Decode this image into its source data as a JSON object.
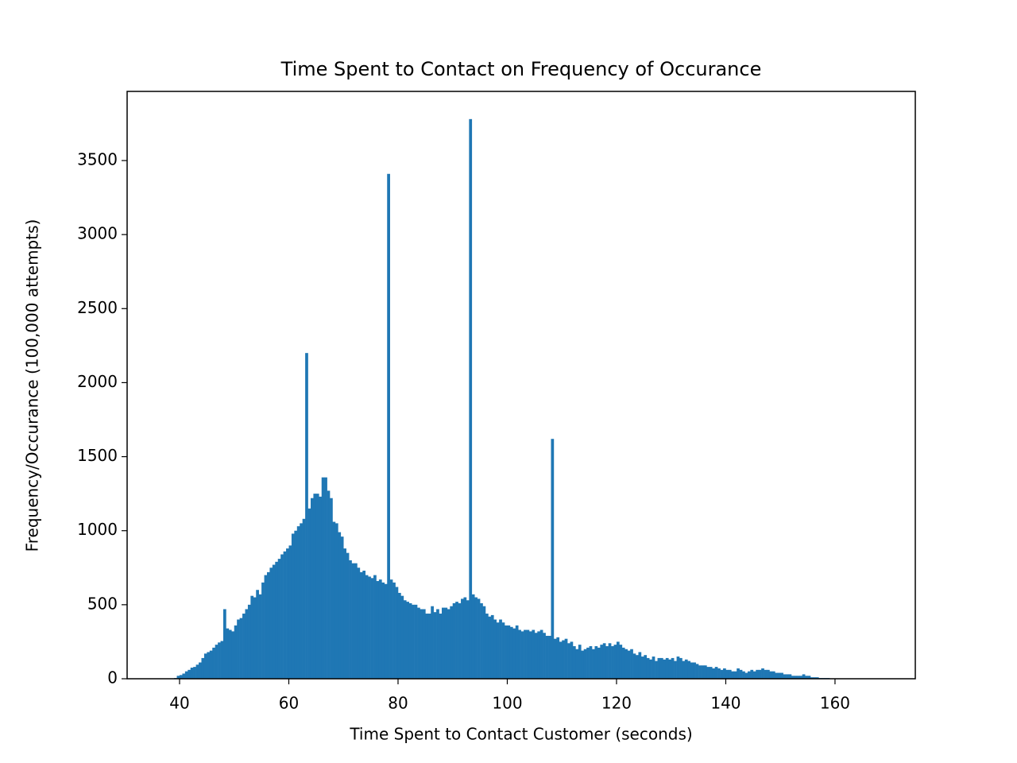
{
  "chart_data": {
    "type": "histogram",
    "title": "Time Spent to Contact on Frequency of Occurance",
    "x_label": "Time Spent to Contact Customer (seconds)",
    "y_label": "Frequency/Occurance (100,000 attempts)",
    "color": "#1f77b4",
    "bins": [
      39,
      39.5,
      40,
      40.5,
      41,
      41.5,
      42,
      42.5,
      43,
      43.5,
      44,
      44.5,
      45,
      45.5,
      46,
      46.5,
      47,
      47.5,
      48,
      48.5,
      49,
      49.5,
      50,
      50.5,
      51,
      51.5,
      52,
      52.5,
      53,
      53.5,
      54,
      54.5,
      55,
      55.5,
      56,
      56.5,
      57,
      57.5,
      58,
      58.5,
      59,
      59.5,
      60,
      60.5,
      61,
      61.5,
      62,
      62.5,
      63,
      63.5,
      64,
      64.5,
      65,
      65.5,
      66,
      66.5,
      67,
      67.5,
      68,
      68.5,
      69,
      69.5,
      70,
      70.5,
      71,
      71.5,
      72,
      72.5,
      73,
      73.5,
      74,
      74.5,
      75,
      75.5,
      76,
      76.5,
      77,
      77.5,
      78,
      78.5,
      79,
      79.5,
      80,
      80.5,
      81,
      81.5,
      82,
      82.5,
      83,
      83.5,
      84,
      84.5,
      85,
      85.5,
      86,
      86.5,
      87,
      87.5,
      88,
      88.5,
      89,
      89.5,
      90,
      90.5,
      91,
      91.5,
      92,
      92.5,
      93,
      93.5,
      94,
      94.5,
      95,
      95.5,
      96,
      96.5,
      97,
      97.5,
      98,
      98.5,
      99,
      99.5,
      100,
      100.5,
      101,
      101.5,
      102,
      102.5,
      103,
      103.5,
      104,
      104.5,
      105,
      105.5,
      106,
      106.5,
      107,
      107.5,
      108,
      108.5,
      109,
      109.5,
      110,
      110.5,
      111,
      111.5,
      112,
      112.5,
      113,
      113.5,
      114,
      114.5,
      115,
      115.5,
      116,
      116.5,
      117,
      117.5,
      118,
      118.5,
      119,
      119.5,
      120,
      120.5,
      121,
      121.5,
      122,
      122.5,
      123,
      123.5,
      124,
      124.5,
      125,
      125.5,
      126,
      126.5,
      127,
      127.5,
      128,
      128.5,
      129,
      129.5,
      130,
      130.5,
      131,
      131.5,
      132,
      132.5,
      133,
      133.5,
      134,
      134.5,
      135,
      135.5,
      136,
      136.5,
      137,
      137.5,
      138,
      138.5,
      139,
      139.5,
      140,
      140.5,
      141,
      141.5,
      142,
      142.5,
      143,
      143.5,
      144,
      144.5,
      145,
      145.5,
      146,
      146.5,
      147,
      147.5,
      148,
      148.5,
      149,
      149.5,
      150,
      150.5,
      151,
      151.5,
      152,
      152.5,
      153,
      153.5,
      154,
      154.5,
      155,
      155.5,
      156,
      156.5,
      157,
      157.5,
      158,
      158.5,
      159,
      159.5,
      160
    ],
    "values": [
      5,
      20,
      25,
      35,
      50,
      60,
      75,
      80,
      95,
      110,
      140,
      170,
      180,
      190,
      210,
      230,
      245,
      255,
      470,
      340,
      330,
      320,
      360,
      400,
      410,
      440,
      470,
      500,
      560,
      550,
      600,
      570,
      650,
      700,
      720,
      750,
      770,
      790,
      810,
      840,
      860,
      880,
      900,
      980,
      1000,
      1030,
      1050,
      1080,
      2200,
      1150,
      1220,
      1250,
      1250,
      1230,
      1360,
      1360,
      1270,
      1220,
      1060,
      1050,
      990,
      960,
      880,
      850,
      800,
      780,
      780,
      750,
      720,
      730,
      700,
      690,
      680,
      700,
      660,
      670,
      650,
      640,
      3410,
      670,
      650,
      620,
      580,
      560,
      530,
      520,
      510,
      500,
      500,
      480,
      470,
      470,
      440,
      440,
      490,
      450,
      470,
      440,
      480,
      480,
      470,
      490,
      510,
      520,
      510,
      540,
      550,
      530,
      3780,
      570,
      550,
      540,
      510,
      490,
      440,
      420,
      430,
      400,
      380,
      400,
      380,
      360,
      360,
      350,
      340,
      360,
      330,
      320,
      330,
      330,
      320,
      330,
      310,
      320,
      330,
      310,
      290,
      290,
      1620,
      270,
      280,
      250,
      260,
      270,
      240,
      250,
      220,
      200,
      230,
      190,
      200,
      210,
      220,
      200,
      220,
      210,
      230,
      240,
      220,
      240,
      220,
      230,
      250,
      230,
      210,
      200,
      190,
      200,
      170,
      160,
      180,
      150,
      160,
      140,
      130,
      150,
      120,
      140,
      140,
      130,
      140,
      130,
      140,
      120,
      150,
      140,
      120,
      130,
      120,
      110,
      110,
      100,
      90,
      90,
      90,
      80,
      80,
      70,
      80,
      70,
      60,
      70,
      60,
      60,
      50,
      50,
      70,
      60,
      50,
      40,
      50,
      60,
      50,
      60,
      60,
      70,
      60,
      60,
      50,
      50,
      40,
      40,
      40,
      30,
      30,
      30,
      20,
      20,
      20,
      20,
      30,
      20,
      20,
      10,
      10,
      10,
      5,
      5,
      5,
      5,
      0,
      0
    ],
    "xlim": [
      30.4,
      174.7
    ],
    "xticks": [
      40,
      60,
      80,
      100,
      120,
      140,
      160
    ],
    "ylim": [
      0,
      3967
    ],
    "yticks": [
      0,
      500,
      1000,
      1500,
      2000,
      2500,
      3000,
      3500
    ],
    "grid": false
  }
}
